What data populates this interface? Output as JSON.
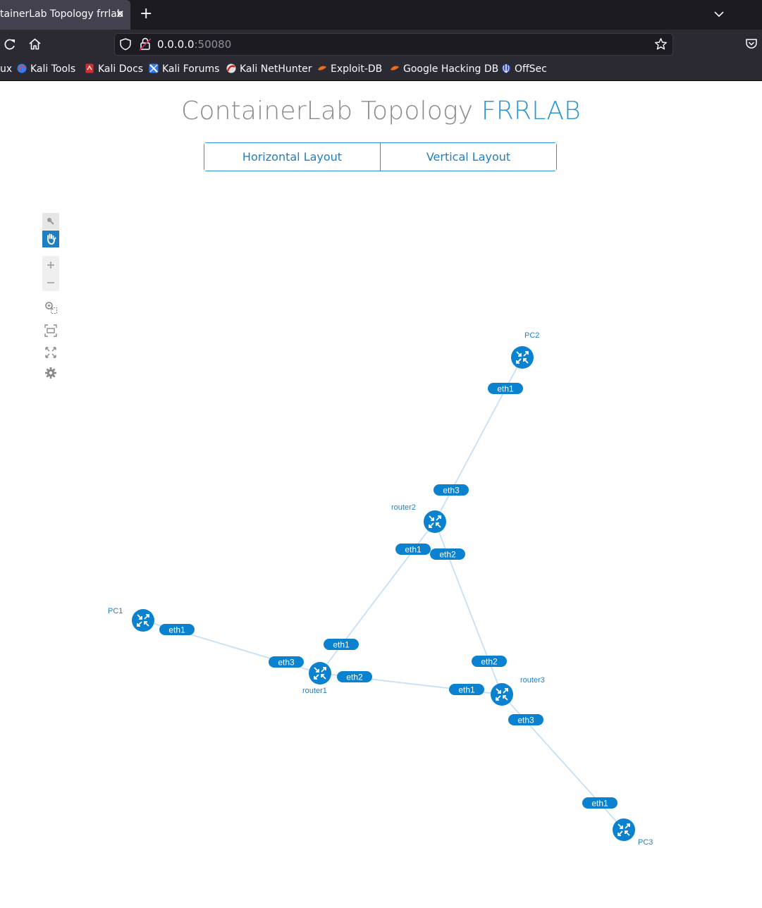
{
  "browser": {
    "tab_title": "tainerLab Topology frrlab",
    "url_host": "0.0.0.0",
    "url_port": ":50080",
    "bookmarks": [
      {
        "label": "ux",
        "icon": ""
      },
      {
        "label": "Kali Tools",
        "icon": "kali-tools-icon"
      },
      {
        "label": "Kali Docs",
        "icon": "kali-docs-icon"
      },
      {
        "label": "Kali Forums",
        "icon": "kali-forums-icon"
      },
      {
        "label": "Kali NetHunter",
        "icon": "kali-nethunter-icon"
      },
      {
        "label": "Exploit-DB",
        "icon": "exploit-db-icon"
      },
      {
        "label": "Google Hacking DB",
        "icon": "google-hacking-db-icon"
      },
      {
        "label": "OffSec",
        "icon": "offsec-icon"
      }
    ]
  },
  "page": {
    "title_main": "ContainerLab Topology ",
    "title_project": "FRRLAB",
    "layout_buttons": [
      "Horizontal Layout",
      "Vertical Layout"
    ]
  },
  "toolbar": [
    "select-icon",
    "pan-hand-icon",
    "zoom-in-icon",
    "zoom-out-icon",
    "zoom-selection-icon",
    "fit-view-icon",
    "fullscreen-icon",
    "settings-gear-icon"
  ],
  "colors": {
    "accent": "#2a93d5",
    "node": "#0a82d0",
    "port": "#0a82d0",
    "link": "#c6e0f5"
  },
  "topology": {
    "nodes": [
      "PC1",
      "PC2",
      "PC3",
      "router1",
      "router2",
      "router3"
    ],
    "links": [
      {
        "a": "PC1",
        "a_port": "eth1",
        "b": "router1",
        "b_port": "eth3"
      },
      {
        "a": "router1",
        "a_port": "eth1",
        "b": "router2",
        "b_port": "eth1"
      },
      {
        "a": "router1",
        "a_port": "eth2",
        "b": "router3",
        "b_port": "eth1"
      },
      {
        "a": "router2",
        "a_port": "eth2",
        "b": "router3",
        "b_port": "eth2"
      },
      {
        "a": "router2",
        "a_port": "eth3",
        "b": "PC2",
        "b_port": "eth1"
      },
      {
        "a": "router3",
        "a_port": "eth3",
        "b": "PC3",
        "b_port": "eth1"
      }
    ]
  }
}
